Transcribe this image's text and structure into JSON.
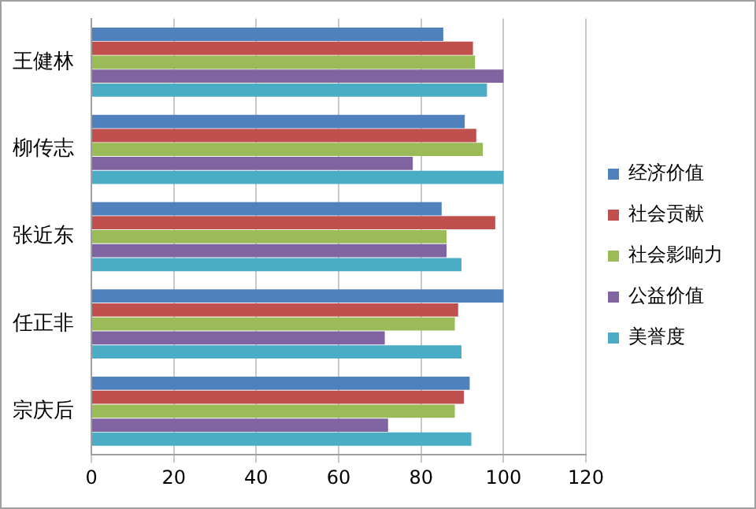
{
  "chart_data": {
    "type": "bar",
    "orientation": "horizontal",
    "categories": [
      "王健林",
      "柳传志",
      "张近东",
      "任正非",
      "宗庆后"
    ],
    "series": [
      {
        "name": "经济价值",
        "color": "#4f81bd",
        "values": [
          85.4,
          90.6,
          85,
          100,
          91.8
        ]
      },
      {
        "name": "社会贡献",
        "color": "#c0504d",
        "values": [
          92.6,
          93.4,
          98,
          89,
          90.4
        ]
      },
      {
        "name": "社会影响力",
        "color": "#9bbb59",
        "values": [
          93.1,
          95,
          86.2,
          88.2,
          88.2
        ]
      },
      {
        "name": "公益价值",
        "color": "#8064a2",
        "values": [
          100,
          78,
          86.2,
          71.2,
          72
        ]
      },
      {
        "name": "美誉度",
        "color": "#4bacc6",
        "values": [
          96,
          100,
          89.8,
          89.8,
          92.2
        ]
      }
    ],
    "xlim": [
      0,
      120
    ],
    "xticks": [
      0,
      20,
      40,
      60,
      80,
      100,
      120
    ],
    "grid": "x",
    "legend": "right"
  }
}
